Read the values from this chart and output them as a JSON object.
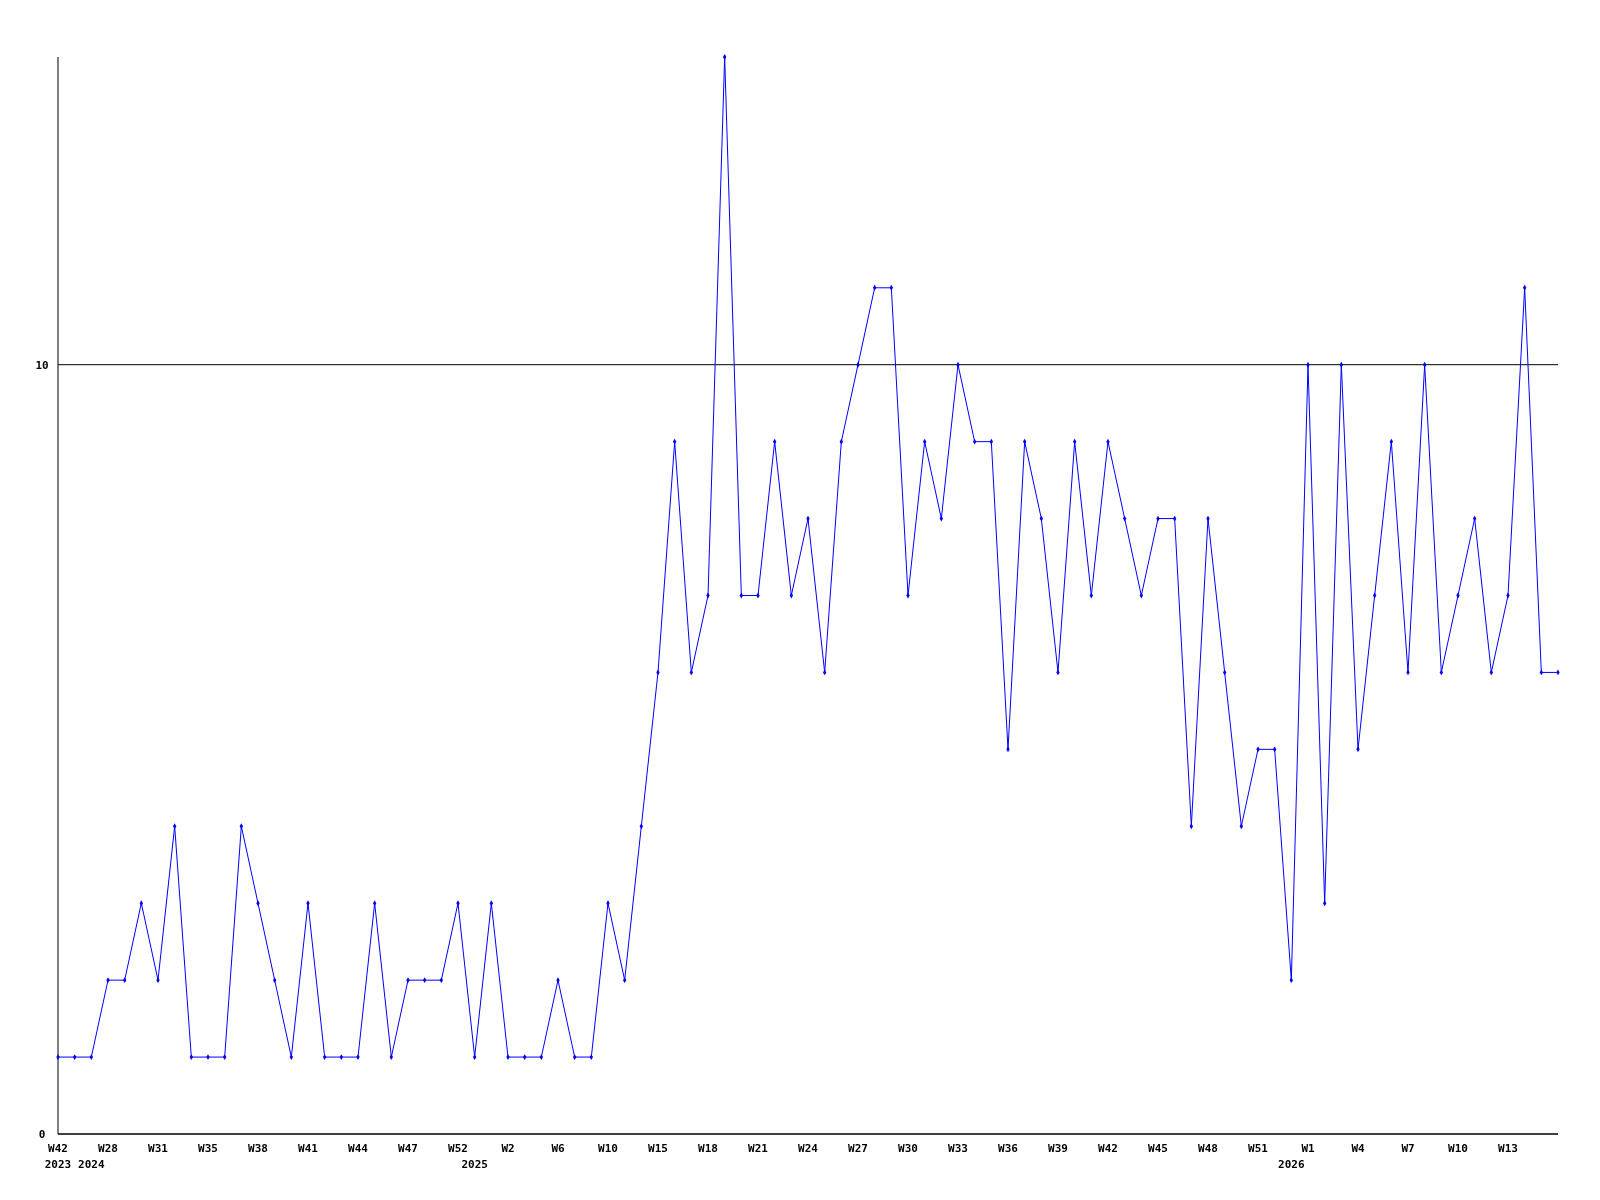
{
  "chart_data": {
    "type": "line",
    "categories": [
      "W42\n2023",
      null,
      "\n2024",
      "W28",
      null,
      null,
      "W31",
      null,
      null,
      "W35",
      null,
      null,
      "W38",
      null,
      null,
      "W41",
      null,
      null,
      "W44",
      null,
      null,
      "W47",
      null,
      null,
      "W52",
      "\n2025",
      null,
      "W2",
      null,
      null,
      "W6",
      null,
      null,
      "W10",
      null,
      null,
      "W15",
      null,
      null,
      "W18",
      null,
      null,
      "W21",
      null,
      null,
      "W24",
      null,
      null,
      "W27",
      null,
      null,
      "W30",
      null,
      null,
      "W33",
      null,
      null,
      "W36",
      null,
      null,
      "W39",
      null,
      null,
      "W42",
      null,
      null,
      "W45",
      null,
      null,
      "W48",
      null,
      null,
      "W51",
      null,
      "\n2026",
      "W1",
      null,
      null,
      "W4",
      null,
      null,
      "W7",
      null,
      null,
      "W10",
      null,
      null,
      "W13",
      null,
      null,
      null
    ],
    "series": [
      {
        "color": "#0000ff",
        "values": [
          1,
          1,
          1,
          2,
          2,
          3,
          2,
          4,
          1,
          1,
          1,
          4,
          3,
          2,
          1,
          3,
          1,
          1,
          1,
          3,
          1,
          2,
          2,
          2,
          3,
          1,
          3,
          1,
          1,
          1,
          2,
          1,
          1,
          3,
          2,
          4,
          6,
          9,
          6,
          7,
          14,
          7,
          7,
          9,
          7,
          8,
          6,
          9,
          10,
          11,
          11,
          7,
          9,
          8,
          10,
          9,
          9,
          5,
          9,
          8,
          6,
          9,
          7,
          9,
          8,
          7,
          8,
          8,
          4,
          8,
          6,
          4,
          5,
          5,
          2,
          10,
          3,
          10,
          5,
          7,
          9,
          6,
          10,
          6,
          7,
          8,
          6,
          7,
          11,
          6,
          6
        ]
      }
    ],
    "ylim": [
      0,
      14
    ],
    "yticks": [
      0,
      10
    ],
    "grid": "y",
    "marker": "diamond"
  }
}
